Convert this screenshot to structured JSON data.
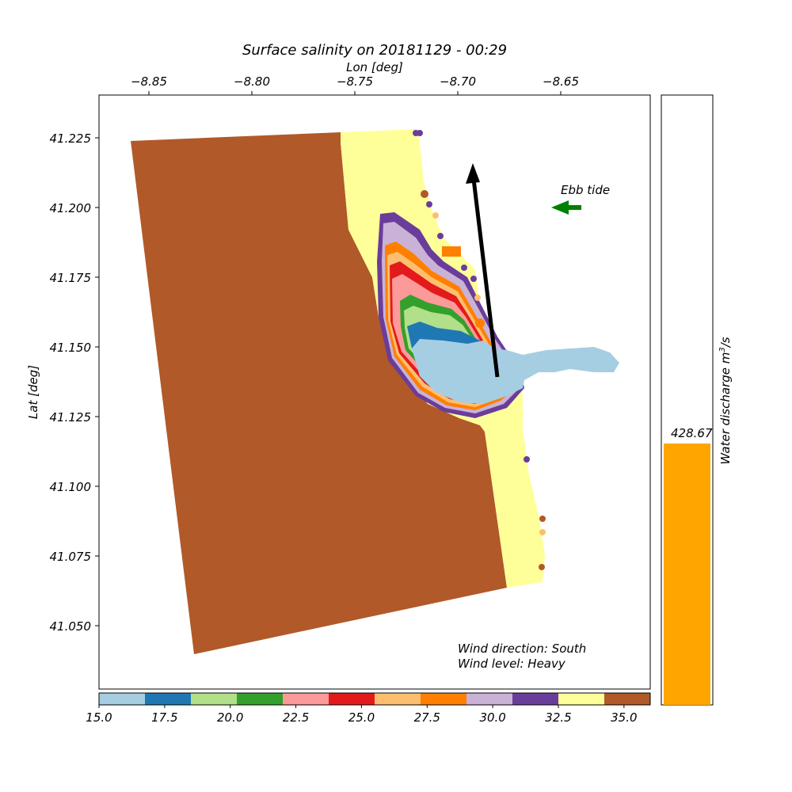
{
  "title": "Surface salinity on 20181129 - 00:29",
  "lon_label": "Lon [deg]",
  "lat_label": "Lat [deg]",
  "lon_ticks": [
    "−8.85",
    "−8.80",
    "−8.75",
    "−8.70",
    "−8.65"
  ],
  "lat_ticks": [
    "41.225",
    "41.200",
    "41.175",
    "41.150",
    "41.125",
    "41.100",
    "41.075",
    "41.050"
  ],
  "colorbar": {
    "ticks": [
      "15.0",
      "17.5",
      "20.0",
      "22.5",
      "25.0",
      "27.5",
      "30.0",
      "32.5",
      "35.0"
    ],
    "colors": [
      "#a6cee3",
      "#1f78b4",
      "#b2df8a",
      "#33a02c",
      "#fb9a99",
      "#e31a1c",
      "#fdbf6f",
      "#ff7f00",
      "#cab2d6",
      "#6a3d9a",
      "#ffff99",
      "#b15928"
    ]
  },
  "annotations": {
    "tide_label": "Ebb tide",
    "wind_direction": "Wind direction: South",
    "wind_level": "Wind level: Heavy"
  },
  "discharge": {
    "label": "Water discharge m",
    "label_sup": "3",
    "label_suffix": "/s",
    "value_text": "428.67",
    "bar_color": "#ffa500"
  },
  "colors": {
    "ocean": "#b15928",
    "coastal": "#ffff99",
    "river": "#a6cee3",
    "wind_arrow": "#000000",
    "tide_arrow": "#008000"
  }
}
